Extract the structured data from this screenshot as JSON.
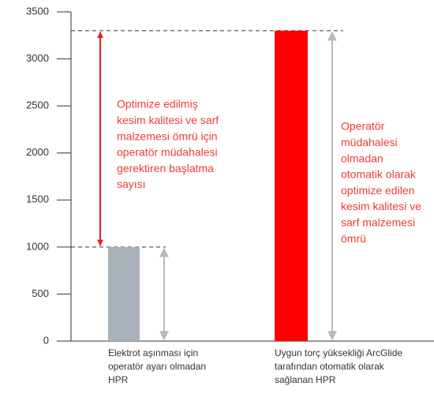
{
  "chart_data": {
    "type": "bar",
    "categories": [
      [
        "Elektrot aşınması için",
        "operatör ayarı olmadan",
        "HPR"
      ],
      [
        "Uygun torç yüksekliği ArcGlide",
        "tarafından otomatik olarak",
        "sağlanan HPR"
      ]
    ],
    "values": [
      1000,
      3300
    ],
    "colors": [
      "#a9b2b9",
      "#ff0000"
    ],
    "ylim": [
      0,
      3500
    ],
    "yticks": [
      0,
      500,
      1000,
      1500,
      2000,
      2500,
      3000,
      3500
    ],
    "annotations": [
      {
        "lines": [
          "Optimize edilmiş",
          "kesim kalitesi ve sarf",
          "malzemesi ömrü için",
          "operatör müdahalesi",
          "gerektiren başlatma",
          "sayısı"
        ],
        "color": "#ef3b36"
      },
      {
        "lines": [
          "Operatör",
          "müdahalesi",
          "olmadan",
          "otomatik olarak",
          "optimize edilen",
          "kesim kalitesi ve",
          "sarf malzemesi",
          "ömrü"
        ],
        "color": "#ef3b36"
      }
    ]
  }
}
